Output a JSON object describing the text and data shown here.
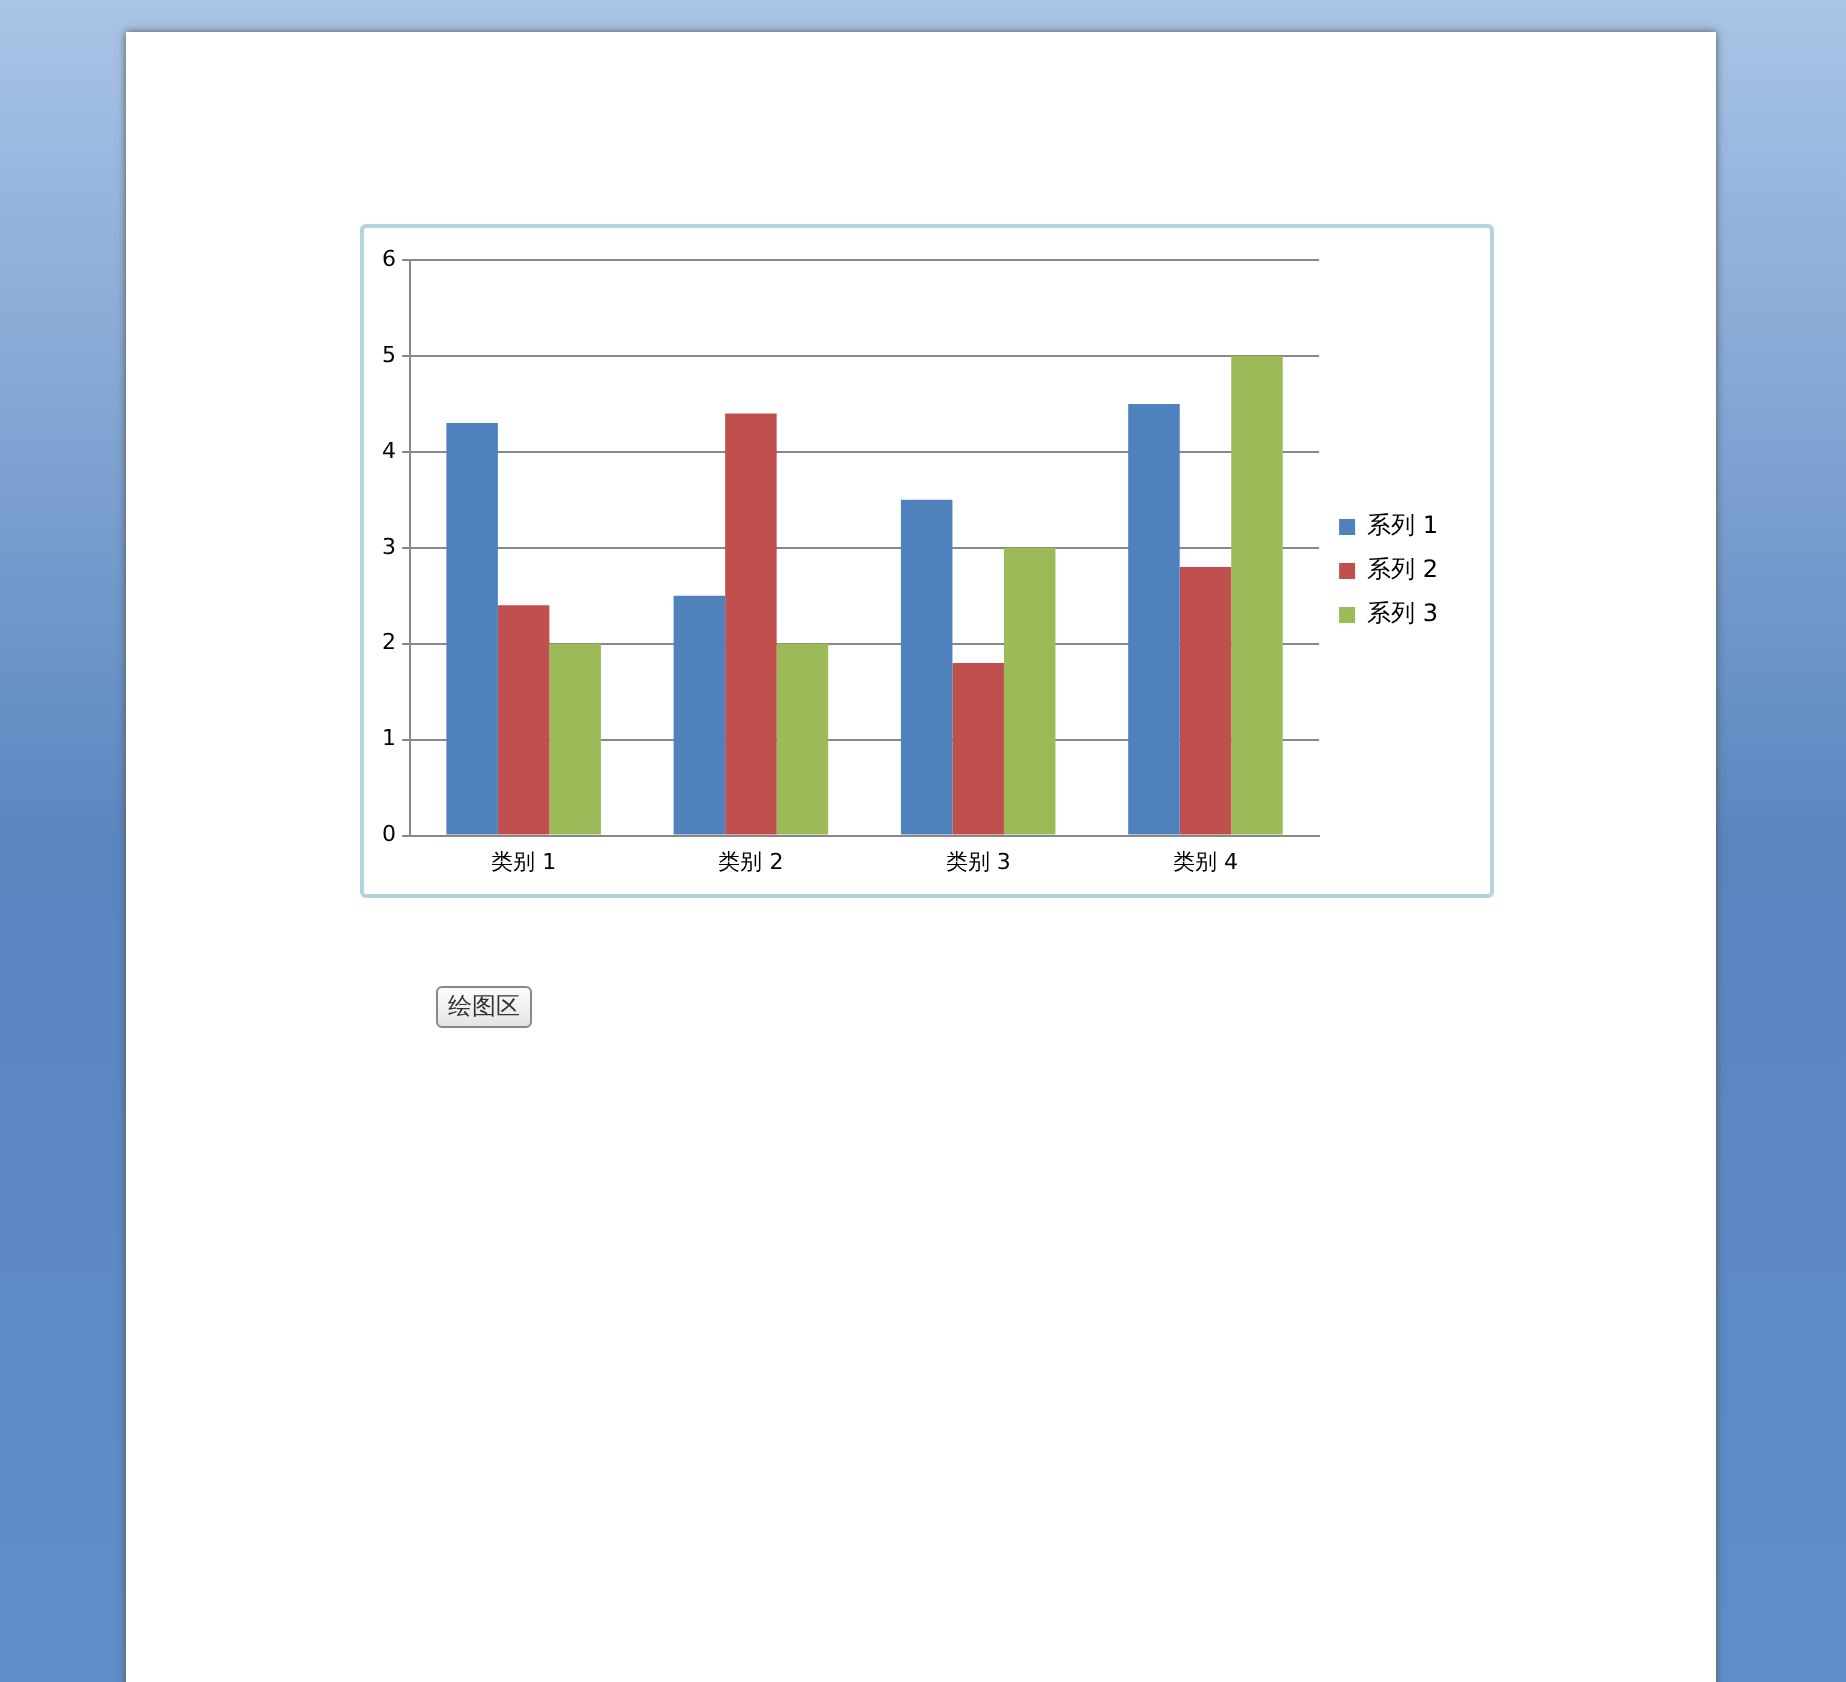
{
  "chart_data": {
    "type": "bar",
    "categories": [
      "类别 1",
      "类别 2",
      "类别 3",
      "类别 4"
    ],
    "series": [
      {
        "name": "系列 1",
        "color": "#4f81bd",
        "values": [
          4.3,
          2.5,
          3.5,
          4.5
        ]
      },
      {
        "name": "系列 2",
        "color": "#c0504d",
        "values": [
          2.4,
          4.4,
          1.8,
          2.8
        ]
      },
      {
        "name": "系列 3",
        "color": "#9bbb59",
        "values": [
          2,
          2,
          3,
          5
        ]
      }
    ],
    "ylim": [
      0,
      6
    ],
    "yticks": [
      0,
      1,
      2,
      3,
      4,
      5,
      6
    ],
    "grid": "y",
    "legend": "right",
    "annotations": [
      "绘图区"
    ]
  }
}
